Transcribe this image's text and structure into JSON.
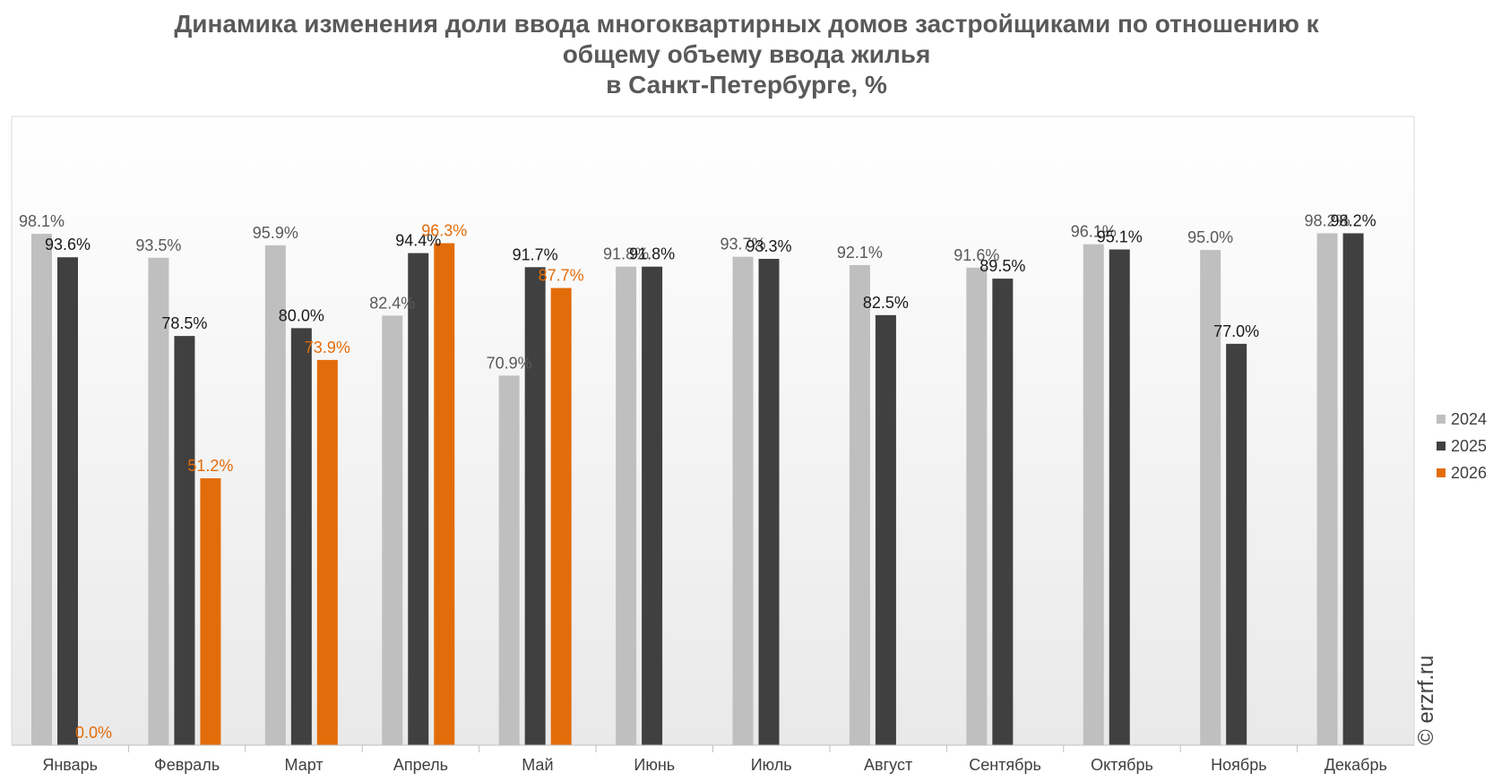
{
  "chart_data": {
    "type": "bar",
    "title_lines": [
      "Динамика изменения доли ввода многоквартирных домов застройщиками по отношению к",
      "общему объему ввода жилья",
      "в Санкт-Петербурге, %"
    ],
    "categories": [
      "Январь",
      "Февраль",
      "Март",
      "Апрель",
      "Май",
      "Июнь",
      "Июль",
      "Август",
      "Сентябрь",
      "Октябрь",
      "Ноябрь",
      "Декабрь"
    ],
    "series": [
      {
        "name": "2024",
        "color": "#bfbfbf",
        "label_color": "#595959",
        "values": [
          98.1,
          93.5,
          95.9,
          82.4,
          70.9,
          91.8,
          93.7,
          92.1,
          91.6,
          96.1,
          95.0,
          98.2
        ],
        "labels": [
          "98.1%",
          "93.5%",
          "95.9%",
          "82.4%",
          "70.9%",
          "91.8%",
          "93.7%",
          "92.1%",
          "91.6%",
          "96.1%",
          "95.0%",
          "98.2%"
        ]
      },
      {
        "name": "2025",
        "color": "#404040",
        "label_color": "#1a1a1a",
        "values": [
          93.6,
          78.5,
          80.0,
          94.4,
          91.7,
          91.8,
          93.3,
          82.5,
          89.5,
          95.1,
          77.0,
          98.2
        ],
        "labels": [
          "93.6%",
          "78.5%",
          "80.0%",
          "94.4%",
          "91.7%",
          "91.8%",
          "93.3%",
          "82.5%",
          "89.5%",
          "95.1%",
          "77.0%",
          "98.2%"
        ]
      },
      {
        "name": "2026",
        "color": "#e36c0a",
        "label_color": "#e36c0a",
        "values": [
          0.0,
          51.2,
          73.9,
          96.3,
          87.7,
          null,
          null,
          null,
          null,
          null,
          null,
          null
        ],
        "labels": [
          "0.0%",
          "51.2%",
          "73.9%",
          "96.3%",
          "87.7%",
          null,
          null,
          null,
          null,
          null,
          null,
          null
        ]
      }
    ],
    "ylim": [
      0,
      100
    ],
    "grid": false,
    "legend_position": "right"
  },
  "credit": "© erzrf.ru"
}
